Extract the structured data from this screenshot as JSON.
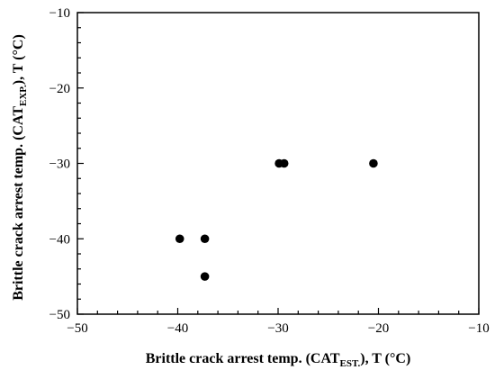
{
  "chart_data": {
    "type": "scatter",
    "title": "",
    "xlabel": {
      "prefix": "Brittle crack arrest temp. (CAT",
      "subscript": "EST.",
      "suffix": "), T (°C)"
    },
    "ylabel": {
      "prefix": "Brittle crack arrest temp. (CAT",
      "subscript": "EXP.",
      "suffix": "), T (°C)"
    },
    "xlim": [
      -50,
      -10
    ],
    "ylim": [
      -50,
      -10
    ],
    "x_ticks": [
      -50,
      -40,
      -30,
      -20,
      -10
    ],
    "y_ticks": [
      -50,
      -40,
      -30,
      -20,
      -10
    ],
    "x_tick_labels": [
      "−50",
      "−40",
      "−30",
      "−20",
      "−10"
    ],
    "y_tick_labels": [
      "−50",
      "−40",
      "−30",
      "−20",
      "−10"
    ],
    "minor_tick_step": 2,
    "grid": false,
    "legend": "none",
    "marker_color": "#000000",
    "points": [
      {
        "x": -39.8,
        "y": -40
      },
      {
        "x": -37.3,
        "y": -40
      },
      {
        "x": -37.3,
        "y": -45
      },
      {
        "x": -29.9,
        "y": -30
      },
      {
        "x": -29.4,
        "y": -30
      },
      {
        "x": -20.5,
        "y": -30
      }
    ]
  }
}
